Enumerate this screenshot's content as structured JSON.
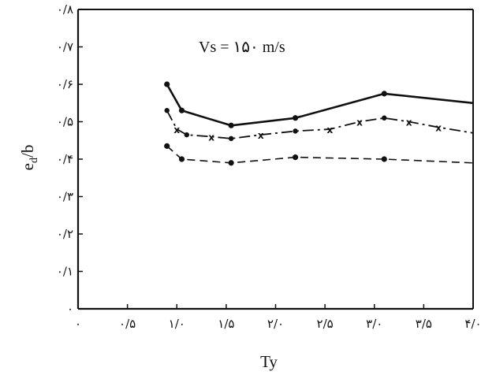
{
  "chart_data": {
    "type": "line",
    "xlabel": "Ty",
    "ylabel": "e",
    "ylabel_sub": "d",
    "ylabel_suffix": "/b",
    "annotation": "Vs = ۱۵۰ m/s",
    "xlim": [
      0,
      4.0
    ],
    "ylim": [
      0,
      0.8
    ],
    "grid": false,
    "x_ticks": [
      {
        "value": 0,
        "label": "۰"
      },
      {
        "value": 0.5,
        "label": "۰/۵"
      },
      {
        "value": 1.0,
        "label": "۱/۰"
      },
      {
        "value": 1.5,
        "label": "۱/۵"
      },
      {
        "value": 2.0,
        "label": "۲/۰"
      },
      {
        "value": 2.5,
        "label": "۲/۵"
      },
      {
        "value": 3.0,
        "label": "۳/۰"
      },
      {
        "value": 3.5,
        "label": "۳/۵"
      },
      {
        "value": 4.0,
        "label": "۴/۰"
      }
    ],
    "y_ticks": [
      {
        "value": 0,
        "label": "۰"
      },
      {
        "value": 0.1,
        "label": "۰/۱"
      },
      {
        "value": 0.2,
        "label": "۰/۲"
      },
      {
        "value": 0.3,
        "label": "۰/۳"
      },
      {
        "value": 0.4,
        "label": "۰/۴"
      },
      {
        "value": 0.5,
        "label": "۰/۵"
      },
      {
        "value": 0.6,
        "label": "۰/۶"
      },
      {
        "value": 0.7,
        "label": "۰/۷"
      },
      {
        "value": 0.8,
        "label": "۰/۸"
      }
    ],
    "series": [
      {
        "style": "solid",
        "marker": "dot",
        "x": [
          0.9,
          1.05,
          1.55,
          2.2,
          3.1,
          4.0
        ],
        "y": [
          0.6,
          0.53,
          0.49,
          0.51,
          0.575,
          0.55
        ],
        "markers_at": [
          0,
          1,
          2,
          3,
          4
        ]
      },
      {
        "style": "dashdot",
        "marker": "x",
        "x": [
          0.9,
          1.0,
          1.1,
          1.35,
          1.55,
          1.85,
          2.2,
          2.55,
          2.85,
          3.1,
          3.35,
          3.65,
          4.0
        ],
        "y": [
          0.53,
          0.48,
          0.465,
          0.46,
          0.455,
          0.465,
          0.475,
          0.48,
          0.5,
          0.51,
          0.5,
          0.485,
          0.47
        ],
        "markers_at": [
          1,
          3,
          5,
          7,
          8,
          10,
          11
        ],
        "dots_at": [
          0,
          2,
          4,
          6,
          9
        ]
      },
      {
        "style": "dashed",
        "marker": "dot",
        "x": [
          0.9,
          1.05,
          1.55,
          2.2,
          3.1,
          4.0
        ],
        "y": [
          0.435,
          0.4,
          0.39,
          0.405,
          0.4,
          0.39
        ],
        "markers_at": [
          0,
          1,
          2,
          3,
          4
        ]
      }
    ]
  }
}
